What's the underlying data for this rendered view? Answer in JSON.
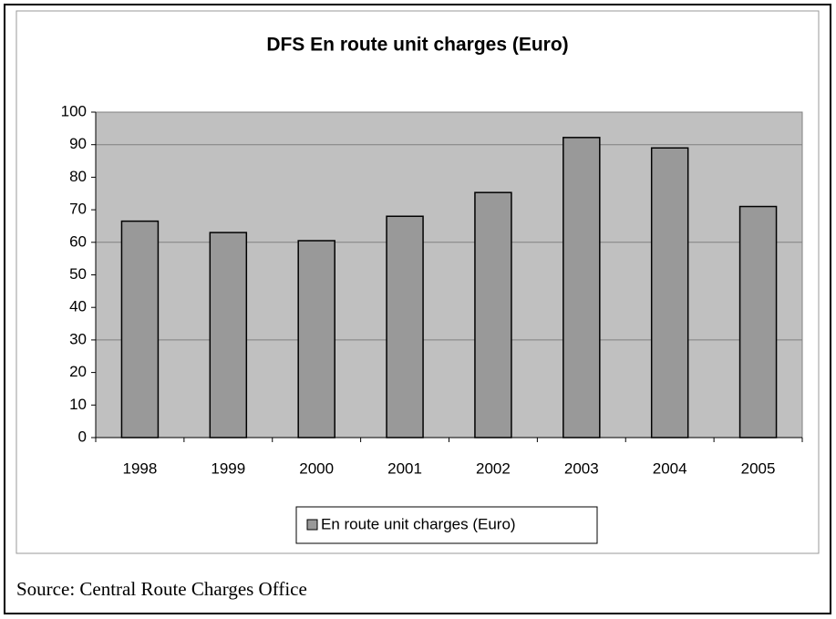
{
  "chart_data": {
    "type": "bar",
    "title": "DFS En route unit charges (Euro)",
    "categories": [
      "1998",
      "1999",
      "2000",
      "2001",
      "2002",
      "2003",
      "2004",
      "2005"
    ],
    "series": [
      {
        "name": "En route unit charges (Euro)",
        "color": "#999999",
        "values": [
          66.5,
          63,
          60.5,
          68,
          75.3,
          92.2,
          89,
          71
        ]
      }
    ],
    "ylim": [
      0,
      100
    ],
    "yticks": [
      0,
      10,
      20,
      30,
      40,
      50,
      60,
      70,
      80,
      90,
      100
    ],
    "gridlines": [
      30,
      60,
      90
    ],
    "grid": true,
    "plot_background": "#c0c0c0",
    "source": "Source: Central Route Charges Office"
  }
}
